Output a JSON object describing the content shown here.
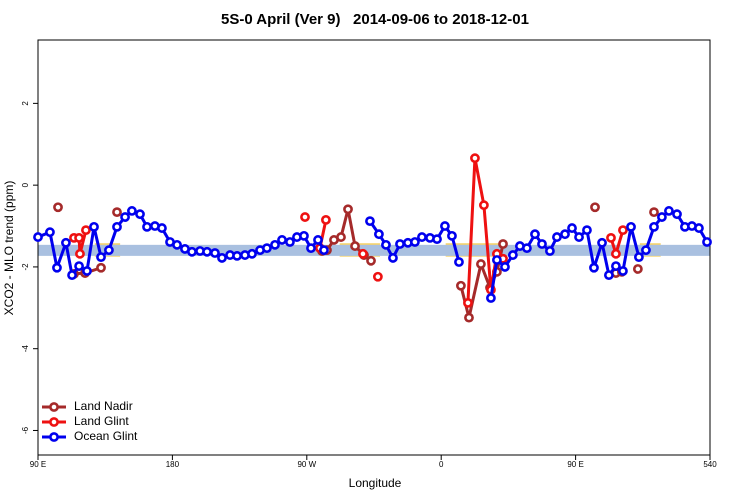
{
  "chart_data": {
    "type": "line",
    "title": "5S-0 April (Ver 9)   2014-09-06 to 2018-12-01",
    "xlabel": "Longitude",
    "ylabel": "XCO2 - MLO trend (ppm)",
    "xlim": [
      90,
      540
    ],
    "ylim": [
      -6.6,
      3.55
    ],
    "xticks": [
      {
        "value": 90,
        "label": "90 E"
      },
      180,
      {
        "value": 270,
        "label": "90 W"
      },
      {
        "value": 360,
        "label": "0"
      },
      {
        "value": 450,
        "label": "90 E"
      },
      540
    ],
    "yticks": [
      -6,
      -4,
      -2,
      0,
      2
    ],
    "legend": "bottom-left",
    "bands": [
      {
        "color": "#f5d46e",
        "x": [
          128,
          145
        ],
        "y": [
          -1.75,
          -1.42
        ]
      },
      {
        "color": "#f5d46e",
        "x": [
          292,
          319
        ],
        "y": [
          -1.75,
          -1.42
        ]
      },
      {
        "color": "#f5d46e",
        "x": [
          363,
          403
        ],
        "y": [
          -1.75,
          -1.42
        ]
      },
      {
        "color": "#f5d46e",
        "x": [
          493,
          507
        ],
        "y": [
          -1.75,
          -1.42
        ]
      },
      {
        "color": "#a9c0e0",
        "x": [
          90,
          540
        ],
        "y": [
          -1.73,
          -1.46
        ]
      }
    ],
    "series": [
      {
        "name": "Land Nadir",
        "color": "#a52a2a",
        "x": [
          103.4,
          null,
          114.1,
          121.5,
          132.2,
          null,
          142.9,
          null,
          280.2,
          283.5,
          288.2,
          292.9,
          297.6,
          302.3,
          308.3,
          313,
          null,
          373.2,
          378.6,
          386.6,
          392.7,
          397.3,
          401.4,
          null,
          463,
          null,
          477,
          481,
          null,
          491.7,
          null,
          502.5
        ],
        "values": [
          -0.54,
          null,
          -2.17,
          -2.15,
          -2.02,
          null,
          -0.66,
          null,
          -1.61,
          -1.59,
          -1.34,
          -1.27,
          -0.59,
          -1.49,
          -1.71,
          -1.85,
          null,
          -2.46,
          -3.24,
          -1.93,
          -2.51,
          -2.12,
          -1.44,
          null,
          -0.54,
          null,
          -2.15,
          -2.12,
          null,
          -2.05,
          null,
          -0.66
        ]
      },
      {
        "name": "Land Glint",
        "color": "#ee1111",
        "x": [
          114.1,
          117.5,
          118.1,
          122.1,
          null,
          268.8,
          null,
          278.8,
          282.8,
          null,
          307.6,
          null,
          317.6,
          null,
          377.9,
          382.6,
          388.6,
          393.3,
          397.3,
          401.4,
          null,
          473.7,
          477,
          481.7
        ],
        "values": [
          -1.29,
          -1.29,
          -1.68,
          -1.1,
          null,
          -0.78,
          null,
          -1.54,
          -0.85,
          null,
          -1.68,
          null,
          -2.24,
          null,
          -2.88,
          0.66,
          -0.49,
          -2.56,
          -1.68,
          -1.8,
          null,
          -1.29,
          -1.68,
          -1.1
        ]
      },
      {
        "name": "Ocean Glint",
        "color": "#0000ee",
        "x": [
          90,
          98,
          102.7,
          108.7,
          112.8,
          117.5,
          122.8,
          127.5,
          132.2,
          137.5,
          142.9,
          148.3,
          152.9,
          158.3,
          163,
          168.3,
          173,
          178.4,
          183.1,
          188.4,
          193.1,
          198.5,
          203.2,
          208.5,
          213.2,
          218.6,
          223.3,
          228.6,
          233.3,
          238.7,
          243.3,
          248.7,
          253.4,
          258.7,
          263.4,
          268.1,
          272.8,
          277.5,
          281.5,
          null,
          312.3,
          318.3,
          323,
          327.7,
          332.4,
          337.7,
          342.4,
          347.1,
          352.5,
          357.2,
          362.5,
          367.2,
          371.9,
          null,
          393.3,
          397.3,
          402.7,
          408,
          412.7,
          417.4,
          422.8,
          427.5,
          432.8,
          437.5,
          442.9,
          447.6,
          452.3,
          457.6,
          462.3,
          467.7,
          472.3,
          477,
          481.7,
          487.1,
          492.4,
          497.1,
          502.5,
          507.8,
          512.5,
          517.9,
          523.2,
          527.9,
          532.6,
          538
        ],
        "values": [
          -1.27,
          -1.15,
          -2.02,
          -1.41,
          -2.2,
          -1.98,
          -2.1,
          -1.02,
          -1.76,
          -1.59,
          -1.02,
          -0.78,
          -0.63,
          -0.71,
          -1.02,
          -1.0,
          -1.05,
          -1.39,
          -1.46,
          -1.56,
          -1.63,
          -1.61,
          -1.63,
          -1.66,
          -1.78,
          -1.71,
          -1.73,
          -1.71,
          -1.68,
          -1.59,
          -1.54,
          -1.46,
          -1.34,
          -1.39,
          -1.27,
          -1.24,
          -1.54,
          -1.34,
          -1.59,
          null,
          -0.88,
          -1.2,
          -1.46,
          -1.78,
          -1.44,
          -1.41,
          -1.39,
          -1.27,
          -1.29,
          -1.32,
          -1.0,
          -1.24,
          -1.88,
          null,
          -2.76,
          -1.83,
          -2.0,
          -1.71,
          -1.49,
          -1.54,
          -1.2,
          -1.44,
          -1.61,
          -1.27,
          -1.2,
          -1.05,
          -1.27,
          -1.1,
          -2.02,
          -1.41,
          -2.2,
          -1.98,
          -2.1,
          -1.02,
          -1.76,
          -1.59,
          -1.02,
          -0.78,
          -0.63,
          -0.71,
          -1.02,
          -1.0,
          -1.05,
          -1.39
        ]
      }
    ]
  }
}
